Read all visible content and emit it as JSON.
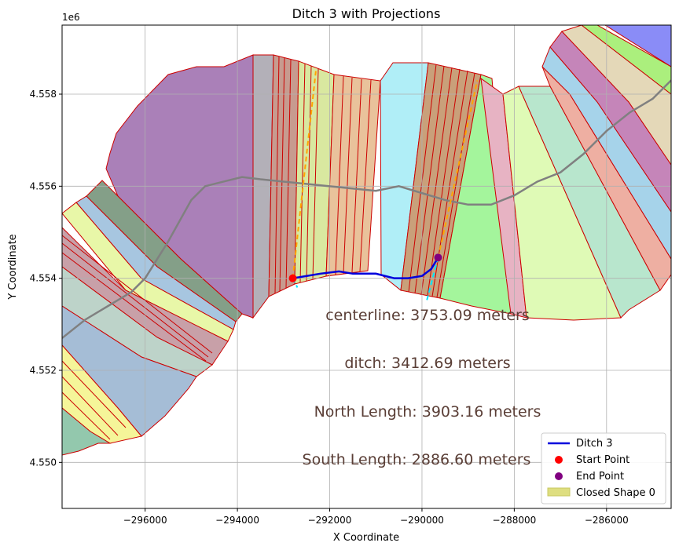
{
  "chart_data": {
    "type": "line",
    "title": "Ditch 3 with Projections",
    "xlabel": "X Coordinate",
    "ylabel": "Y Coordinate",
    "y_offset_label": "1e6",
    "xlim": [
      -297800,
      -284600
    ],
    "ylim": [
      4549000,
      4559500
    ],
    "grid": true,
    "xticks": [
      -296000,
      -294000,
      -292000,
      -290000,
      -288000,
      -286000
    ],
    "yticks": [
      4550000,
      4552000,
      4554000,
      4556000,
      4558000
    ],
    "xtick_labels": [
      "−296000",
      "−294000",
      "−292000",
      "−290000",
      "−288000",
      "−286000"
    ],
    "ytick_labels": [
      "4.550",
      "4.552",
      "4.554",
      "4.556",
      "4.558"
    ],
    "colors": {
      "ditch": "#0000dd",
      "start": "#ff0000",
      "end": "#800080",
      "north_projection": "#ffa500",
      "south_projection": "#00e5ff",
      "centerline": "#808080",
      "closed_shape": "#dede80",
      "shape_edge": "#cc0000"
    },
    "series": [
      {
        "name": "Ditch 3",
        "x": [
          -292800,
          -292500,
          -292200,
          -291800,
          -291500,
          -291000,
          -290800,
          -290600,
          -290300,
          -290000,
          -289800,
          -289650
        ],
        "y": [
          4554000,
          4554050,
          4554100,
          4554150,
          4554100,
          4554100,
          4554050,
          4554000,
          4554000,
          4554050,
          4554200,
          4554450
        ]
      }
    ],
    "points": [
      {
        "name": "Start Point",
        "x": -292800,
        "y": 4554000
      },
      {
        "name": "End Point",
        "x": -289650,
        "y": 4554450
      }
    ],
    "projections": {
      "north_start": [
        [
          -292800,
          4554000
        ],
        [
          -292300,
          4558500
        ]
      ],
      "north_end": [
        [
          -289650,
          4554450
        ],
        [
          -288800,
          4558300
        ]
      ],
      "south_start": [
        [
          -292800,
          4554000
        ],
        [
          -292700,
          4553800
        ]
      ],
      "south_end": [
        [
          -289650,
          4554450
        ],
        [
          -289900,
          4553500
        ]
      ]
    },
    "centerline": {
      "x": [
        -297800,
        -297300,
        -296800,
        -296300,
        -296000,
        -295500,
        -295000,
        -294700,
        -294300,
        -293900,
        -293500,
        -293000,
        -292000,
        -291000,
        -290500,
        -290000,
        -289500,
        -289000,
        -288500,
        -288000,
        -287500,
        -287000,
        -286500,
        -286000,
        -285500,
        -285000,
        -284600
      ],
      "y": [
        4552700,
        4553100,
        4553400,
        4553700,
        4554000,
        4554800,
        4555700,
        4556000,
        4556100,
        4556200,
        4556150,
        4556100,
        4556000,
        4555900,
        4556000,
        4555850,
        4555700,
        4555600,
        4555600,
        4555800,
        4556100,
        4556300,
        4556700,
        4557200,
        4557600,
        4557900,
        4558300
      ]
    },
    "annotations": [
      "centerline: 3753.09 meters",
      "ditch: 3412.69 meters",
      "North Length: 3903.16 meters",
      "South Length: 2886.60 meters"
    ],
    "legend": {
      "placement": "lower-right",
      "entries": [
        "Ditch 3",
        "Start Point",
        "End Point",
        "Closed Shape 0"
      ]
    }
  }
}
